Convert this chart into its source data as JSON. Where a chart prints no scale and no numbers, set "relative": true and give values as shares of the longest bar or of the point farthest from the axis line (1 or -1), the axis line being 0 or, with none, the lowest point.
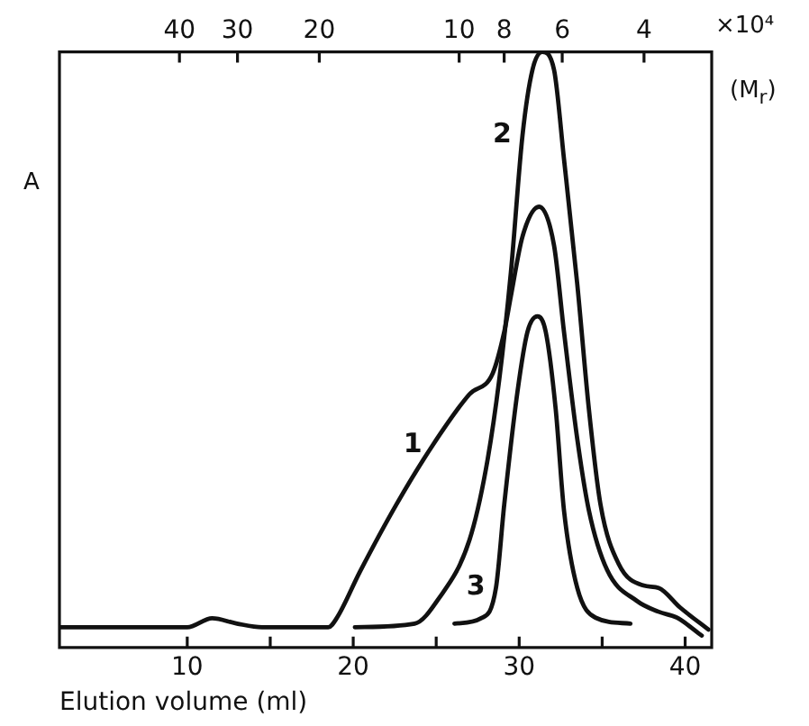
{
  "chart_data": {
    "type": "line",
    "xlabel": "Elution volume (ml)",
    "ylabel": "A",
    "relative": true,
    "xlim": [
      2.3,
      41.6
    ],
    "xticks": [
      10,
      {
        "value": 15,
        "label": null
      },
      20,
      {
        "value": 25,
        "label": null
      },
      30,
      {
        "value": 35,
        "label": null
      },
      40
    ],
    "x2lim": [
      72.5,
      2.86
    ],
    "x2ticks": [
      40,
      30,
      20,
      10,
      8,
      6,
      4
    ],
    "annotations": [
      "×10⁴",
      "(M$_{r}$)"
    ],
    "log": "x2",
    "grid": false,
    "legend": false,
    "marker": "none",
    "line_style": "solid",
    "series": [
      {
        "name": "1",
        "color": "#111111",
        "x": [
          2.3,
          10,
          11.5,
          13,
          14.5,
          18.5,
          19,
          20.4,
          22.6,
          24.8,
          27.0,
          28.4,
          29.1,
          29.5,
          30.2,
          31.2,
          32.1,
          32.7,
          33.5,
          34.2,
          35.3,
          37.1,
          38.4,
          39.5,
          41
        ],
        "values": [
          0.034,
          0.034,
          0.049,
          0.04,
          0.034,
          0.034,
          0.049,
          0.127,
          0.24,
          0.34,
          0.425,
          0.46,
          0.53,
          0.59,
          0.69,
          0.74,
          0.675,
          0.53,
          0.35,
          0.23,
          0.13,
          0.078,
          0.06,
          0.05,
          0.02
        ]
      },
      {
        "name": "2",
        "color": "#111111",
        "x": [
          20.1,
          23.7,
          25.1,
          27.0,
          28.0,
          28.8,
          29.5,
          30.2,
          30.8,
          31.4,
          32.1,
          32.7,
          33.5,
          34.2,
          34.9,
          36.0,
          37.5,
          38.4,
          39.7,
          41.4
        ],
        "values": [
          0.034,
          0.04,
          0.08,
          0.18,
          0.3,
          0.45,
          0.63,
          0.86,
          0.97,
          1.0,
          0.97,
          0.82,
          0.61,
          0.4,
          0.24,
          0.14,
          0.104,
          0.1,
          0.067,
          0.03
        ]
      },
      {
        "name": "3",
        "color": "#111111",
        "x": [
          26.1,
          27.7,
          28.6,
          29.1,
          29.9,
          30.5,
          31.1,
          31.6,
          32.2,
          32.7,
          33.5,
          34.6,
          36.7
        ],
        "values": [
          0.04,
          0.049,
          0.1,
          0.24,
          0.43,
          0.53,
          0.556,
          0.53,
          0.4,
          0.23,
          0.1,
          0.05,
          0.04
        ]
      }
    ]
  }
}
